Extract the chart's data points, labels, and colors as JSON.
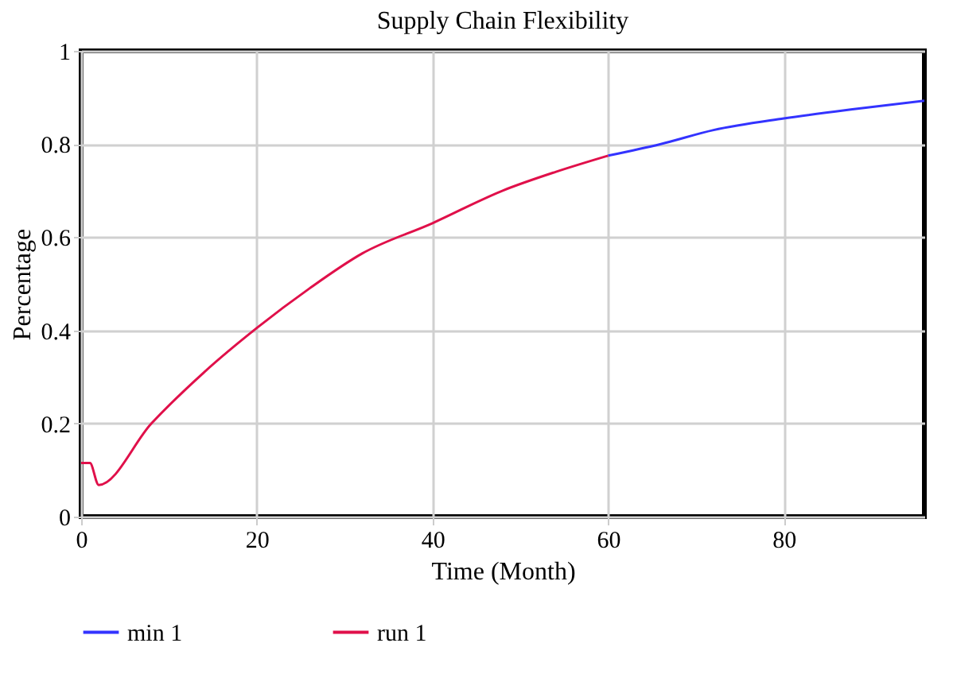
{
  "chart_data": {
    "type": "line",
    "title": "Supply Chain Flexibility",
    "xlabel": "Time (Month)",
    "ylabel": "Percentage",
    "xlim": [
      0,
      96
    ],
    "xticks": [
      0,
      20,
      40,
      60,
      80
    ],
    "ylim": [
      0,
      1
    ],
    "yticks": [
      0,
      0.2,
      0.4,
      0.6,
      0.8,
      1
    ],
    "grid": true,
    "legend": "bottom",
    "marker": "none",
    "line_style": "solid",
    "series": [
      {
        "name": "min 1",
        "color": "#3333ff",
        "x": [
          60,
          66,
          72,
          80,
          88,
          96
        ],
        "values": [
          0.775,
          0.8,
          0.83,
          0.855,
          0.875,
          0.893
        ]
      },
      {
        "name": "run 1",
        "color": "#e0104a",
        "x": [
          0,
          1,
          2,
          8,
          14,
          20,
          26,
          32,
          40,
          48,
          54,
          60
        ],
        "values": [
          0.115,
          0.115,
          0.068,
          0.2,
          0.31,
          0.405,
          0.49,
          0.565,
          0.63,
          0.7,
          0.74,
          0.775
        ]
      }
    ]
  }
}
